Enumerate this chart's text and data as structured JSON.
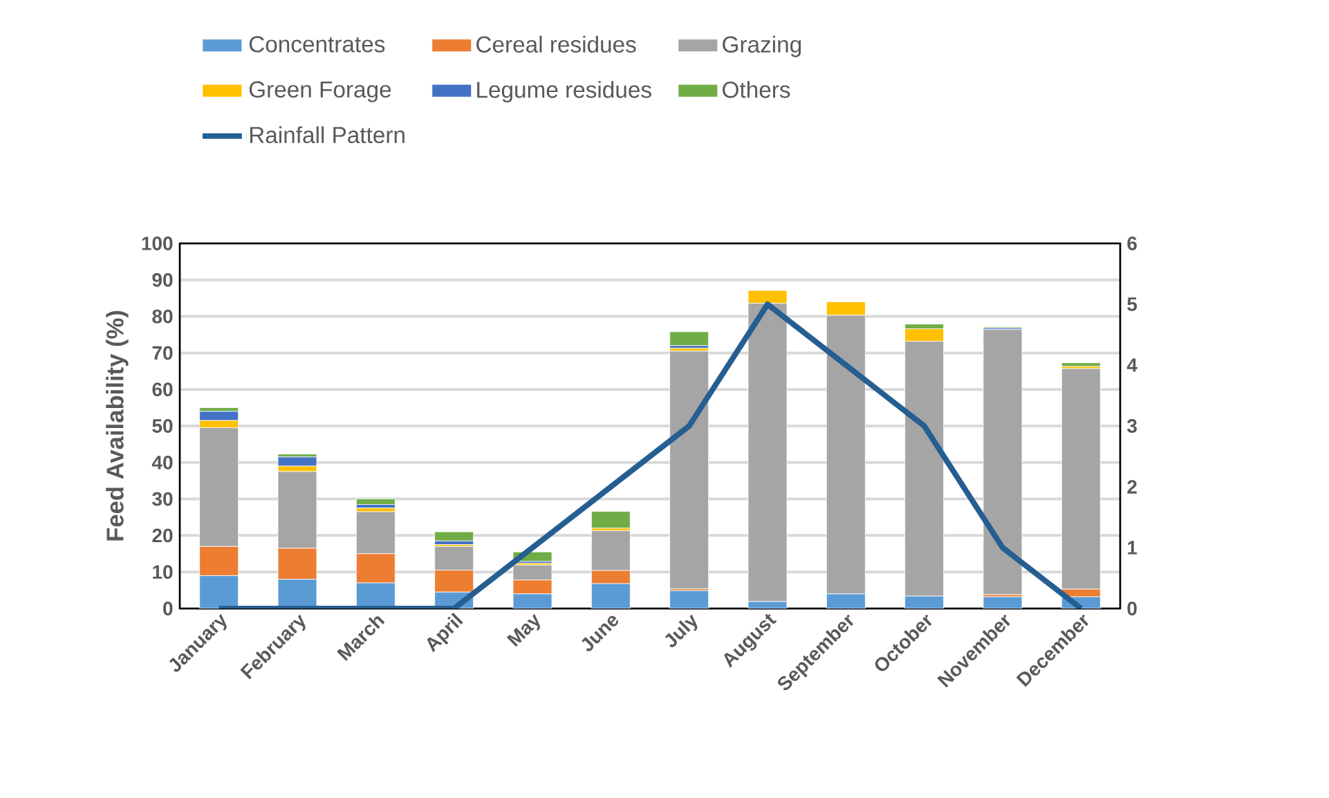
{
  "chart_data": {
    "type": "bar",
    "stacked": true,
    "ylabel": "Feed Availability (%)",
    "categories": [
      "January",
      "February",
      "March",
      "April",
      "May",
      "June",
      "July",
      "August",
      "September",
      "October",
      "November",
      "December"
    ],
    "series": [
      {
        "name": "Concentrates",
        "color": "#5b9bd5",
        "values": [
          9,
          8,
          7,
          4.5,
          4,
          6.8,
          4.9,
          1.9,
          4,
          3.4,
          3.2,
          3.2
        ]
      },
      {
        "name": "Cereal residues",
        "color": "#ed7d31",
        "values": [
          8,
          8.5,
          8,
          6,
          3.8,
          3.6,
          0.5,
          0,
          0,
          0,
          0.6,
          2.1
        ]
      },
      {
        "name": "Grazing",
        "color": "#a5a5a5",
        "values": [
          32.5,
          21,
          11.5,
          6.5,
          4.1,
          10.9,
          65.1,
          81.7,
          76.3,
          69.8,
          72.6,
          60.4
        ]
      },
      {
        "name": "Green Forage",
        "color": "#ffc000",
        "values": [
          2,
          1.5,
          1,
          0.5,
          0.5,
          0.7,
          0.8,
          3.5,
          3.7,
          3.4,
          0,
          0.6
        ]
      },
      {
        "name": "Legume residues",
        "color": "#4472c4",
        "values": [
          2.5,
          2.5,
          1,
          1,
          0.5,
          null,
          0.7,
          0,
          0,
          0,
          0.4,
          0
        ]
      },
      {
        "name": "Others",
        "color": "#70ad47",
        "values": [
          1,
          0.8,
          1.5,
          2.5,
          2.6,
          4.6,
          3.8,
          0,
          0,
          1.3,
          0.3,
          1
        ]
      },
      {
        "name": "Rainfall Pattern",
        "type": "line",
        "axis": "y2",
        "color": "#255e91",
        "values": [
          0,
          0,
          0,
          0,
          1,
          2,
          3,
          5,
          4,
          3,
          1,
          0
        ]
      }
    ],
    "ylim": [
      0,
      100
    ],
    "yticks": [
      0,
      10,
      20,
      30,
      40,
      50,
      60,
      70,
      80,
      90,
      100
    ],
    "y2lim": [
      0,
      6
    ],
    "y2ticks": [
      0,
      1,
      2,
      3,
      4,
      5,
      6
    ],
    "grid": "y",
    "legend": "top",
    "marker": "none",
    "line_style": "solid"
  }
}
